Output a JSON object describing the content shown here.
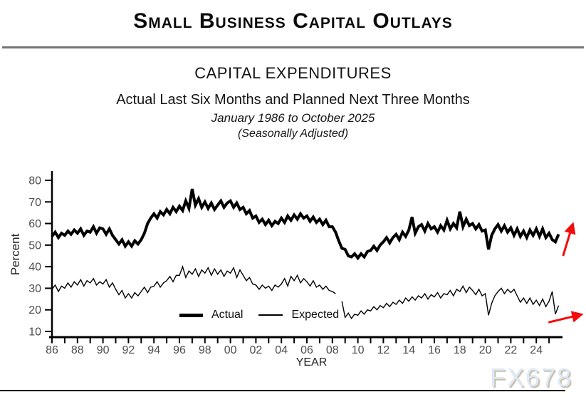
{
  "page": {
    "main_title": "Small Business Capital Outlays",
    "watermark": "FX678"
  },
  "chart_data": {
    "type": "line",
    "title": "CAPITAL EXPENDITURES",
    "subtitle": "Actual Last Six Months and Planned Next Three Months",
    "date_range": "January 1986 to October 2025",
    "adjustment_note": "(Seasonally Adjusted)",
    "xlabel": "YEAR",
    "ylabel": "Percent",
    "xlim": [
      1986,
      2026
    ],
    "ylim": [
      10,
      80
    ],
    "grid": false,
    "legend_position": "inside-bottom-center",
    "line_color": "#000000",
    "tick_label_color": "#4d4d4d",
    "arrow_color": "#f20d0c",
    "yticks": [
      10,
      20,
      30,
      40,
      50,
      60,
      70,
      80
    ],
    "xtick_values": [
      1986,
      1988,
      1990,
      1992,
      1994,
      1996,
      1998,
      2000,
      2002,
      2004,
      2006,
      2008,
      2010,
      2012,
      2014,
      2016,
      2018,
      2020,
      2022,
      2024
    ],
    "xtick_labels": [
      "86",
      "88",
      "90",
      "92",
      "94",
      "96",
      "98",
      "00",
      "02",
      "04",
      "06",
      "08",
      "10",
      "12",
      "14",
      "16",
      "18",
      "20",
      "22",
      "24"
    ],
    "series": [
      {
        "name": "Actual",
        "stroke_width": 4,
        "segments": [
          {
            "start": 1986.0,
            "step": 0.25,
            "values": [
              54,
              56,
              53.5,
              55.5,
              54.5,
              56.5,
              55,
              57,
              55.5,
              57.5,
              54.5,
              56.5,
              56,
              58.5,
              55.5,
              58,
              57.5,
              55,
              57.5,
              54.5,
              52.5,
              50.5,
              52.5,
              49.5,
              51.5,
              49.5,
              52,
              50.5,
              52.5,
              55.5,
              60,
              62.5,
              64.5,
              62.5,
              65.5,
              64,
              66.5,
              64.5,
              67.5,
              65.5,
              68,
              66,
              70.5,
              67,
              76,
              68.5,
              71.5,
              67.5,
              70,
              67,
              69.5,
              66.5,
              68.5,
              70.5,
              67.5,
              69.5,
              70.5,
              67.5,
              69.5,
              66.5,
              67.5,
              64.5,
              66,
              62.5,
              63.5,
              60.5,
              62,
              59.5,
              61.5,
              59,
              61,
              60,
              62.5,
              60.5,
              63.5,
              61.5,
              64,
              62,
              64.5,
              62.5,
              63.5,
              61,
              63,
              60.5,
              62,
              59.5,
              61.5,
              58.5,
              58.5,
              56,
              52,
              48.5,
              48,
              45,
              44.5,
              46,
              44,
              46,
              44.5,
              47,
              47.5,
              49.5,
              47.5,
              50,
              51.5,
              53.5,
              51,
              53.5,
              55,
              52.5,
              56,
              54,
              57,
              63,
              55.5,
              58.5,
              59.5,
              56.5,
              60,
              57.5,
              58.5,
              56,
              59,
              57,
              61.5,
              57.5,
              60,
              58,
              65.5,
              58.5,
              62,
              59,
              60,
              57.5,
              59.5,
              56.5,
              57,
              48,
              54.5,
              57.5,
              59.5,
              56.5,
              59,
              56,
              58,
              54.5,
              57.5,
              54,
              56.5,
              53.5,
              57,
              54.5,
              57.5,
              54,
              57.5,
              53.5,
              55.5,
              52.5,
              51.5,
              55
            ]
          }
        ]
      },
      {
        "name": "Expected",
        "stroke_width": 1.4,
        "segments": [
          {
            "start": 1986.0,
            "step": 0.25,
            "values": [
              29.5,
              31.5,
              28.5,
              31,
              30,
              32.5,
              30.5,
              33,
              31.5,
              34,
              31,
              33.5,
              32.5,
              34.5,
              31.5,
              33,
              32,
              34,
              30.5,
              32.5,
              29.5,
              27,
              29,
              25.5,
              27.5,
              25.5,
              28,
              26.5,
              28.5,
              30.5,
              28,
              30.5,
              31,
              33,
              30.5,
              32.5,
              33.5,
              35.5,
              33,
              36,
              36,
              40,
              35,
              38,
              36.5,
              39,
              35.5,
              38.5,
              37,
              39.5,
              36,
              39,
              36.5,
              38.5,
              35.5,
              38,
              37,
              39.5,
              35,
              38.5,
              36,
              33.5,
              35,
              32,
              31.5,
              29.5,
              31.5,
              30,
              31,
              29,
              31.5,
              30.5,
              32,
              34.5,
              31,
              35.5,
              33.5,
              36,
              32.5,
              34.5,
              33,
              31,
              33.5,
              30.5,
              31.5,
              29.5,
              31,
              29,
              28.5,
              27.5
            ]
          },
          {
            "start": 2008.75,
            "step": 0.25,
            "values": [
              24,
              16.5,
              18.5,
              16,
              18,
              17.5,
              19.5,
              18,
              20,
              19.5,
              21.5,
              20,
              22,
              21,
              23,
              21.5,
              23.5,
              22.5,
              24.5,
              23,
              25.5,
              24,
              26,
              24.5,
              26.5,
              25.5,
              27.5,
              25,
              27,
              26,
              28,
              25.5,
              27.5,
              27,
              29,
              26.5,
              29.5,
              28.5,
              31,
              28,
              30.5,
              29,
              27,
              29.5,
              26.5,
              27.5,
              17.5,
              23,
              26.5,
              28.5,
              30,
              27.5,
              29.5,
              28,
              29.5,
              26.5,
              23.5,
              25.5,
              23,
              25.5,
              22.5,
              24.5,
              22,
              25,
              21.5,
              24,
              28.5,
              18,
              22
            ]
          }
        ]
      }
    ],
    "annotations": [
      {
        "type": "arrow",
        "from": {
          "x": 2026.1,
          "y": 45
        },
        "to": {
          "x": 2026.85,
          "y": 59.5
        }
      },
      {
        "type": "arrow",
        "from": {
          "x": 2024.95,
          "y": 14.2
        },
        "to": {
          "x": 2027.5,
          "y": 17.8
        }
      }
    ]
  }
}
